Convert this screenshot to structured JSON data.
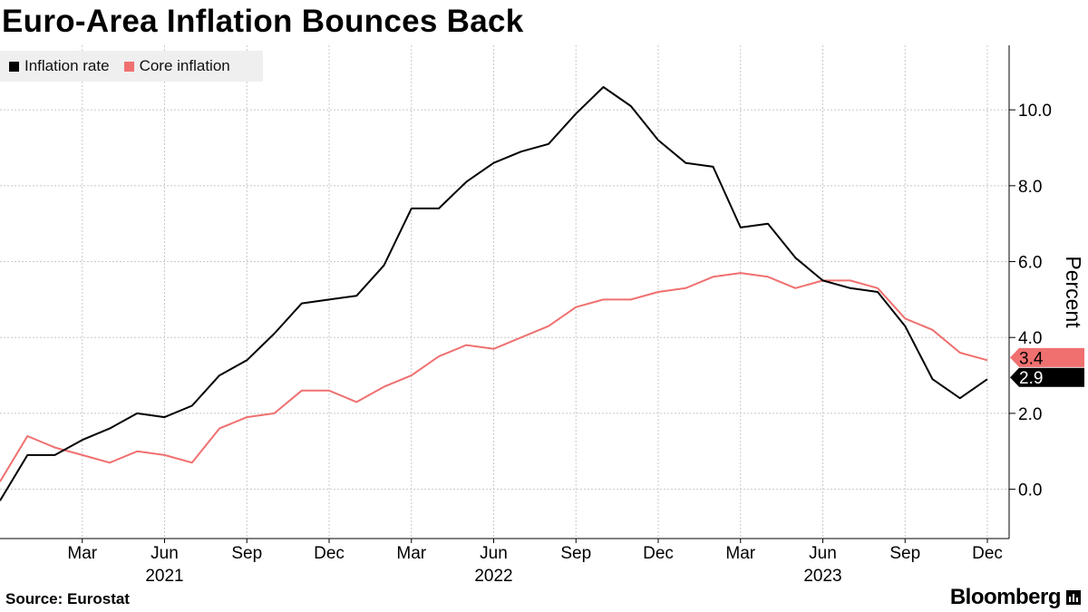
{
  "title": "Euro-Area Inflation Bounces Back",
  "source": "Source: Eurostat",
  "brand": "Bloomberg",
  "brand_icon": "bloomberg-terminal-icon",
  "legend": [
    {
      "label": "Inflation rate",
      "color": "#000000"
    },
    {
      "label": "Core inflation",
      "color": "#f07070"
    }
  ],
  "chart_data": {
    "type": "line",
    "title": "Euro-Area Inflation Bounces Back",
    "ylabel": "Percent",
    "xlabel": "",
    "ylim": [
      -1.3,
      11.7
    ],
    "yticks": [
      0,
      2,
      4,
      6,
      8,
      10
    ],
    "ytick_labels": [
      "0.0",
      "2.0",
      "4.0",
      "6.0",
      "8.0",
      "10.0"
    ],
    "x": [
      "2020-12",
      "2021-01",
      "2021-02",
      "2021-03",
      "2021-04",
      "2021-05",
      "2021-06",
      "2021-07",
      "2021-08",
      "2021-09",
      "2021-10",
      "2021-11",
      "2021-12",
      "2022-01",
      "2022-02",
      "2022-03",
      "2022-04",
      "2022-05",
      "2022-06",
      "2022-07",
      "2022-08",
      "2022-09",
      "2022-10",
      "2022-11",
      "2022-12",
      "2023-01",
      "2023-02",
      "2023-03",
      "2023-04",
      "2023-05",
      "2023-06",
      "2023-07",
      "2023-08",
      "2023-09",
      "2023-10",
      "2023-11",
      "2023-12"
    ],
    "xticks": [
      {
        "index": 3,
        "label": "Mar",
        "year": ""
      },
      {
        "index": 6,
        "label": "Jun",
        "year": "2021"
      },
      {
        "index": 9,
        "label": "Sep",
        "year": ""
      },
      {
        "index": 12,
        "label": "Dec",
        "year": ""
      },
      {
        "index": 15,
        "label": "Mar",
        "year": ""
      },
      {
        "index": 18,
        "label": "Jun",
        "year": "2022"
      },
      {
        "index": 21,
        "label": "Sep",
        "year": ""
      },
      {
        "index": 24,
        "label": "Dec",
        "year": ""
      },
      {
        "index": 27,
        "label": "Mar",
        "year": ""
      },
      {
        "index": 30,
        "label": "Jun",
        "year": "2023"
      },
      {
        "index": 33,
        "label": "Sep",
        "year": ""
      },
      {
        "index": 36,
        "label": "Dec",
        "year": ""
      }
    ],
    "series": [
      {
        "name": "Inflation rate",
        "color": "#000000",
        "values": [
          -0.3,
          0.9,
          0.9,
          1.3,
          1.6,
          2.0,
          1.9,
          2.2,
          3.0,
          3.4,
          4.1,
          4.9,
          5.0,
          5.1,
          5.9,
          7.4,
          7.4,
          8.1,
          8.6,
          8.9,
          9.1,
          9.9,
          10.6,
          10.1,
          9.2,
          8.6,
          8.5,
          6.9,
          7.0,
          6.1,
          5.5,
          5.3,
          5.2,
          4.3,
          2.9,
          2.4,
          2.9
        ],
        "last_label": "2.9"
      },
      {
        "name": "Core inflation",
        "color": "#f07070",
        "values": [
          0.2,
          1.4,
          1.1,
          0.9,
          0.7,
          1.0,
          0.9,
          0.7,
          1.6,
          1.9,
          2.0,
          2.6,
          2.6,
          2.3,
          2.7,
          3.0,
          3.5,
          3.8,
          3.7,
          4.0,
          4.3,
          4.8,
          5.0,
          5.0,
          5.2,
          5.3,
          5.6,
          5.7,
          5.6,
          5.3,
          5.5,
          5.5,
          5.3,
          4.5,
          4.2,
          3.6,
          3.4
        ],
        "last_label": "3.4"
      }
    ],
    "grid": true
  }
}
